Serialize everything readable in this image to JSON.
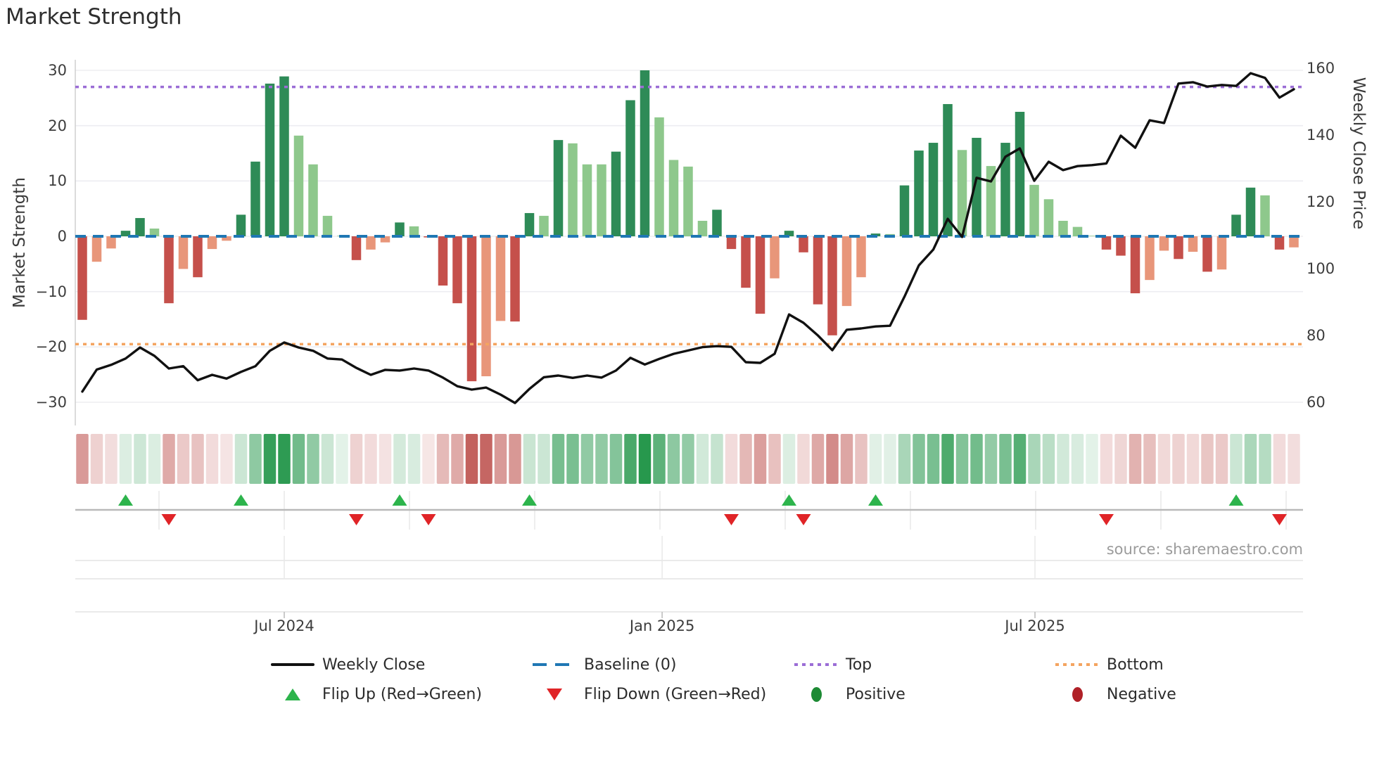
{
  "title": "Market Strength",
  "source_text": "source: sharemaestro.com",
  "axes": {
    "left": {
      "label": "Market Strength",
      "tick_labels": [
        "30",
        "20",
        "10",
        "0",
        "−10",
        "−20",
        "−30"
      ],
      "tick_values": [
        30,
        20,
        10,
        0,
        -10,
        -20,
        -30
      ]
    },
    "right": {
      "label": "Weekly Close Price",
      "tick_labels": [
        "160",
        "140",
        "120",
        "100",
        "80",
        "60"
      ],
      "tick_values": [
        160,
        140,
        120,
        100,
        80,
        60
      ]
    },
    "x": {
      "tick_labels": [
        "Jul 2024",
        "Jan 2025",
        "Jul 2025"
      ],
      "tick_week_index": [
        14.0,
        40.2,
        66.05
      ]
    }
  },
  "legend": {
    "row1": [
      {
        "label": "Weekly Close",
        "marker": "solid-black-line"
      },
      {
        "label": "Baseline (0)",
        "marker": "blue-dashed-line"
      },
      {
        "label": "Top",
        "marker": "purple-dotted-line"
      },
      {
        "label": "Bottom",
        "marker": "orange-dotted-line"
      }
    ],
    "row2": [
      {
        "label": "Flip Up (Red→Green)",
        "marker": "green-up-triangle"
      },
      {
        "label": "Flip Down (Green→Red)",
        "marker": "red-down-triangle"
      },
      {
        "label": "Positive",
        "marker": "green-dot"
      },
      {
        "label": "Negative",
        "marker": "dark-red-dot"
      }
    ]
  },
  "colors": {
    "bar_pos_rising": "#2e8b57",
    "bar_pos_falling": "#8ec88c",
    "bar_neg_falling": "#c5504b",
    "bar_neg_rising": "#e8967a",
    "heat_green": "#27984d",
    "heat_red": "#bc4d49",
    "weekly_close_line": "#111111",
    "baseline": "#1f77b4",
    "top_line": "#9b6dd6",
    "bottom_line": "#f4a460",
    "flip_up": "#2db44c",
    "flip_down": "#e02427",
    "grid": "#ededf1",
    "spine": "#cfcfcf"
  },
  "chart_data": [
    {
      "type": "bar",
      "name": "Market Strength (weekly)",
      "x_unit": "week index (weekly bars, Mar 2024 – Nov 2025)",
      "ylim": [
        -33,
        33
      ],
      "values": [
        -15.1,
        -4.6,
        -2.2,
        1.0,
        3.3,
        1.4,
        -12.1,
        -5.9,
        -7.4,
        -2.3,
        -0.8,
        3.9,
        13.5,
        27.6,
        28.9,
        18.2,
        13.0,
        3.7,
        0.1,
        -4.3,
        -2.4,
        -1.1,
        2.5,
        1.8,
        -0.2,
        -8.9,
        -12.1,
        -26.2,
        -25.3,
        -15.3,
        -15.4,
        4.2,
        3.7,
        17.4,
        16.8,
        13.0,
        13.0,
        15.3,
        24.6,
        30.0,
        21.5,
        13.8,
        12.6,
        2.8,
        4.8,
        -2.3,
        -9.3,
        -14.0,
        -7.6,
        1.0,
        -2.9,
        -12.3,
        -17.9,
        -12.6,
        -7.4,
        0.5,
        0.4,
        9.2,
        15.5,
        16.9,
        23.9,
        15.6,
        17.8,
        12.7,
        16.9,
        22.5,
        9.3,
        6.7,
        2.8,
        1.7,
        0.1,
        -2.4,
        -3.5,
        -10.3,
        -7.9,
        -2.6,
        -4.1,
        -2.8,
        -6.4,
        -6.0,
        3.9,
        8.8,
        7.4,
        -2.4,
        -2.0
      ],
      "color_rule": "dark green = positive & rising, light green = positive & falling, dark red = negative & falling, salmon = negative & rising"
    },
    {
      "type": "line",
      "name": "Weekly Close",
      "axis": "right",
      "ylim": [
        55,
        165
      ],
      "values": [
        63.2,
        69.8,
        71.2,
        73.1,
        76.4,
        73.9,
        70.1,
        70.8,
        66.6,
        68.2,
        67.1,
        69.1,
        70.8,
        75.4,
        77.9,
        76.4,
        75.4,
        73.1,
        72.8,
        70.3,
        68.2,
        69.7,
        69.5,
        70.1,
        69.5,
        67.4,
        64.8,
        63.8,
        64.4,
        62.3,
        59.8,
        64.0,
        67.5,
        68.0,
        67.3,
        68.0,
        67.4,
        69.5,
        73.3,
        71.3,
        73.0,
        74.5,
        75.5,
        76.5,
        76.8,
        76.6,
        72.0,
        71.8,
        74.5,
        86.3,
        83.8,
        80.0,
        75.6,
        81.7,
        82.1,
        82.7,
        82.9,
        91.6,
        101.0,
        105.7,
        114.9,
        109.5,
        127.2,
        126.1,
        133.5,
        136.0,
        126.3,
        132.0,
        129.5,
        130.7,
        131.0,
        131.5,
        139.8,
        136.2,
        144.4,
        143.6,
        155.4,
        155.8,
        154.5,
        155.0,
        154.7,
        158.5,
        157.1,
        151.2,
        153.7
      ]
    },
    {
      "type": "heatmap",
      "name": "strength heat strip",
      "note": "one cell per week; red/green hue by sign of Market Strength, intensity proportional to |value|"
    },
    {
      "type": "scatter",
      "name": "Flip Up (Red→Green)",
      "weeks": [
        4,
        12,
        23,
        32,
        50,
        56,
        81
      ]
    },
    {
      "type": "scatter",
      "name": "Flip Down (Green→Red)",
      "weeks": [
        7,
        20,
        25,
        46,
        51,
        72,
        84
      ]
    },
    {
      "type": "reference_lines",
      "baseline": 0,
      "top": 27,
      "bottom": -19.5
    }
  ]
}
